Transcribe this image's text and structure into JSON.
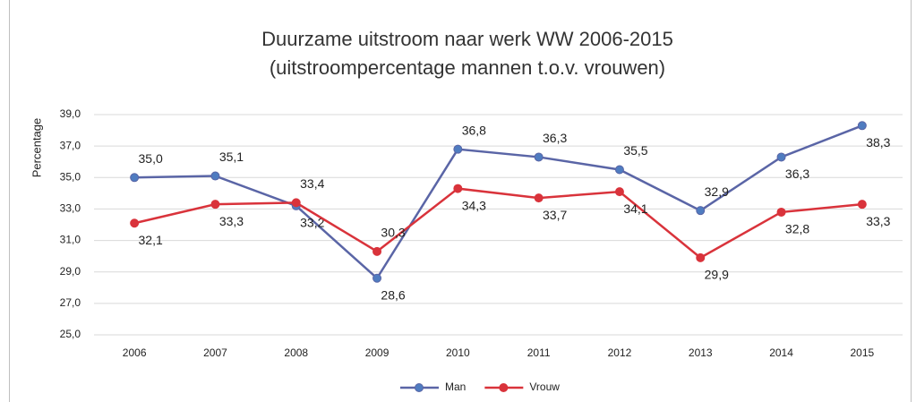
{
  "chart_data": {
    "type": "line",
    "title": "Duurzame uitstroom naar werk WW 2006-2015",
    "subtitle": "(uitstroompercentage mannen t.o.v. vrouwen)",
    "y_label": "Percentage",
    "categories": [
      "2006",
      "2007",
      "2008",
      "2009",
      "2010",
      "2011",
      "2012",
      "2013",
      "2014",
      "2015"
    ],
    "series": [
      {
        "name": "Man",
        "color": "#5a65a6",
        "marker_color": "#4f7cc0",
        "values": [
          35.0,
          35.1,
          33.2,
          28.6,
          36.8,
          36.3,
          35.5,
          32.9,
          36.3,
          38.3
        ],
        "value_labels": [
          "35,0",
          "35,1",
          "33,2",
          "28,6",
          "36,8",
          "36,3",
          "35,5",
          "32,9",
          "36,3",
          "38,3"
        ]
      },
      {
        "name": "Vrouw",
        "color": "#d9333b",
        "marker_color": "#d9333b",
        "values": [
          32.1,
          33.3,
          33.4,
          30.3,
          34.3,
          33.7,
          34.1,
          29.9,
          32.8,
          33.3
        ],
        "value_labels": [
          "32,1",
          "33,3",
          "33,4",
          "30,3",
          "34,3",
          "33,7",
          "34,1",
          "29,9",
          "32,8",
          "33,3"
        ]
      }
    ],
    "ylim": [
      25,
      39
    ],
    "yticks": [
      {
        "value": 25,
        "label": "25,0"
      },
      {
        "value": 27,
        "label": "27,0"
      },
      {
        "value": 29,
        "label": "29,0"
      },
      {
        "value": 31,
        "label": "31,0"
      },
      {
        "value": 33,
        "label": "33,0"
      },
      {
        "value": 35,
        "label": "35,0"
      },
      {
        "value": 37,
        "label": "37,0"
      },
      {
        "value": 39,
        "label": "39,0"
      }
    ],
    "grid": true,
    "legend": "bottom"
  }
}
